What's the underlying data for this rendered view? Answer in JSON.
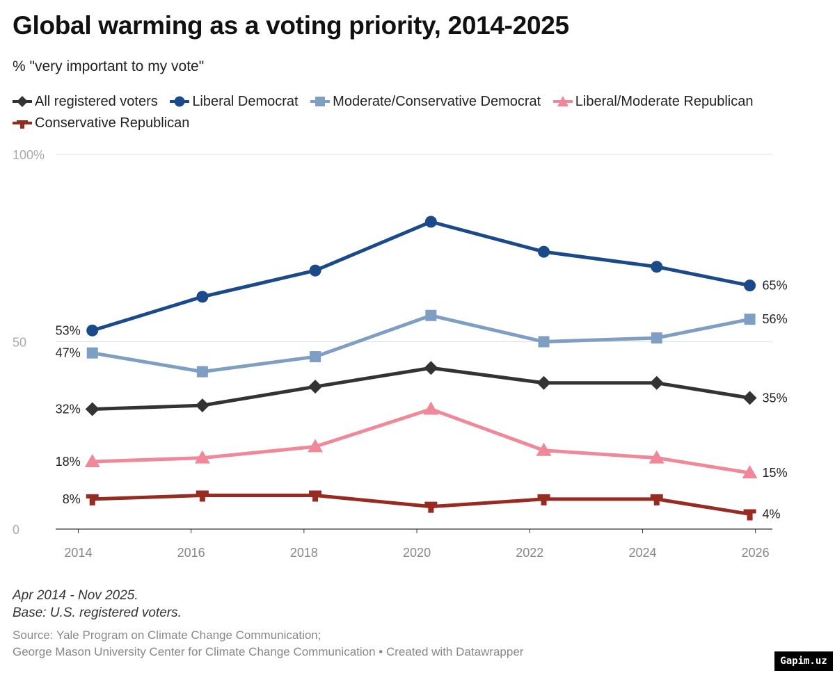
{
  "chart_data": {
    "type": "line",
    "title": "Global warming as a voting priority, 2014-2025",
    "subtitle": "% \"very important to my vote\"",
    "x": [
      2014.25,
      2016.2,
      2018.2,
      2020.25,
      2022.25,
      2024.25,
      2025.9
    ],
    "xticks": [
      "2014",
      "2016",
      "2018",
      "2020",
      "2022",
      "2024",
      "2026"
    ],
    "xtick_values": [
      2014,
      2016,
      2018,
      2020,
      2022,
      2024,
      2026
    ],
    "xlim": [
      2013.6,
      2026.3
    ],
    "ylim": [
      0,
      100
    ],
    "yticks": [
      0,
      50,
      100
    ],
    "ytick_labels": [
      "0",
      "50",
      "100%"
    ],
    "series": [
      {
        "name": "All registered voters",
        "color": "#333333",
        "marker": "diamond",
        "values": [
          32,
          33,
          38,
          43,
          39,
          39,
          35
        ],
        "start_label": "32%",
        "end_label": "35%"
      },
      {
        "name": "Liberal Democrat",
        "color": "#1b4a8a",
        "marker": "circle",
        "values": [
          53,
          62,
          69,
          82,
          74,
          70,
          65
        ],
        "start_label": "53%",
        "end_label": "65%"
      },
      {
        "name": "Moderate/Conservative Democrat",
        "color": "#7f9ec4",
        "marker": "square",
        "values": [
          47,
          42,
          46,
          57,
          50,
          51,
          56
        ],
        "start_label": "47%",
        "end_label": "56%"
      },
      {
        "name": "Liberal/Moderate Republican",
        "color": "#ef8898",
        "marker": "triangle",
        "values": [
          18,
          19,
          22,
          32,
          21,
          19,
          15
        ],
        "start_label": "18%",
        "end_label": "15%"
      },
      {
        "name": "Conservative Republican",
        "color": "#972a21",
        "marker": "cross",
        "values": [
          8,
          9,
          9,
          6,
          8,
          8,
          4
        ],
        "start_label": "8%",
        "end_label": "4%"
      }
    ]
  },
  "notes": [
    "Apr 2014 - Nov 2025.",
    "Base: U.S. registered voters."
  ],
  "source": [
    "Source: Yale Program on Climate Change Communication;",
    "George Mason University Center for Climate Change Communication • Created with Datawrapper"
  ],
  "badge": "Gapim.uz"
}
